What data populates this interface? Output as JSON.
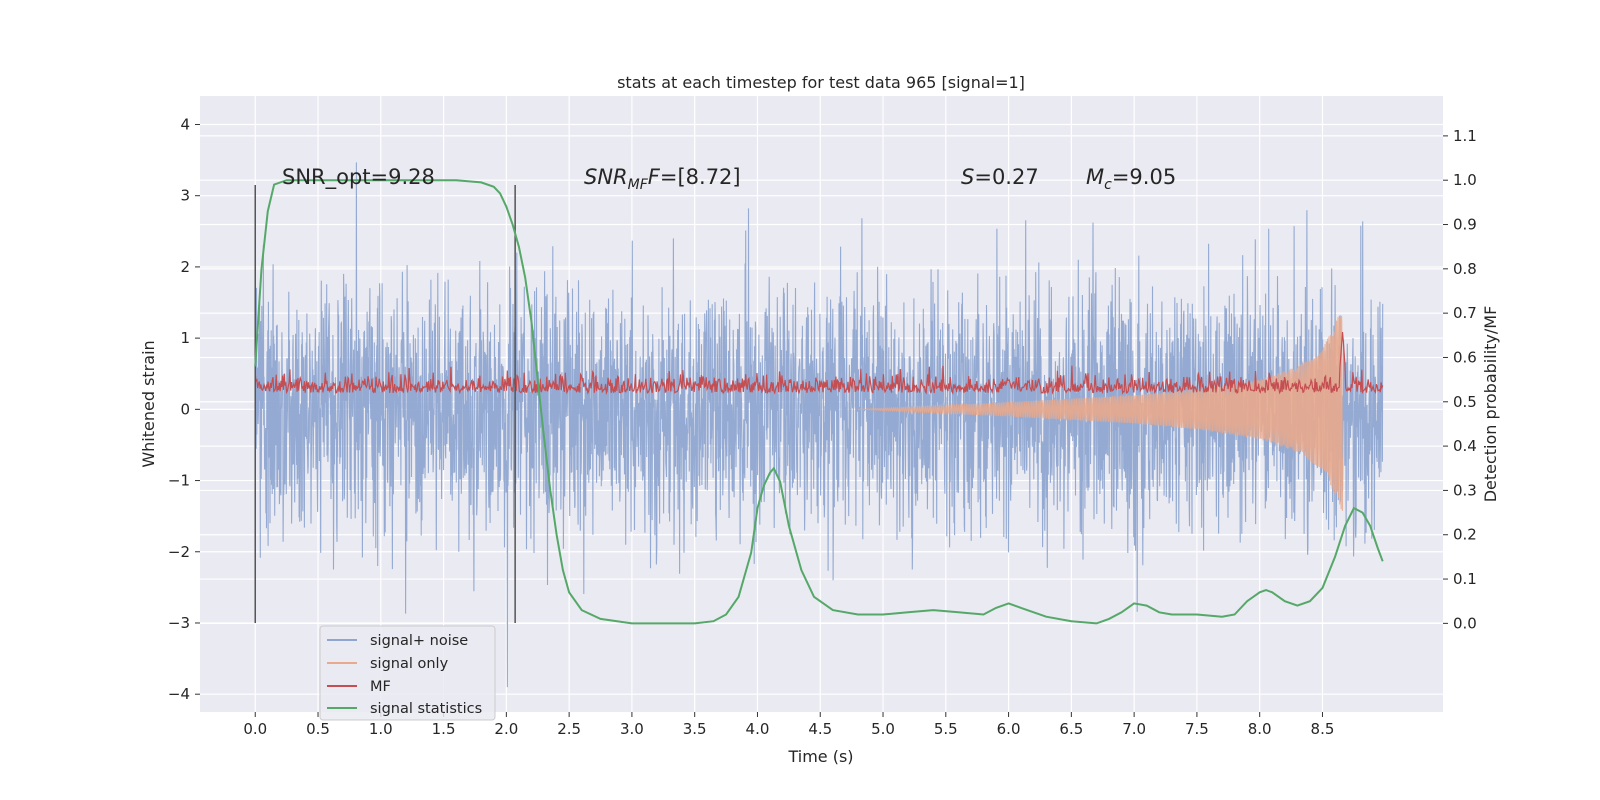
{
  "chart_data": {
    "type": "line",
    "title": "stats at each timestep for test data 965 [signal=1]",
    "xlabel": "Time (s)",
    "ylabel": "Whitened strain",
    "ylabel_right": "Detection probability/MF",
    "xlim": [
      -0.44,
      9.46
    ],
    "ylim": [
      -4.25,
      4.4
    ],
    "ylim_right": [
      -0.2,
      1.19
    ],
    "xticks": [
      0.0,
      0.5,
      1.0,
      1.5,
      2.0,
      2.5,
      3.0,
      3.5,
      4.0,
      4.5,
      5.0,
      5.5,
      6.0,
      6.5,
      7.0,
      7.5,
      8.0,
      8.5
    ],
    "xtick_labels": [
      "0.0",
      "0.5",
      "1.0",
      "1.5",
      "2.0",
      "2.5",
      "3.0",
      "3.5",
      "4.0",
      "4.5",
      "5.0",
      "5.5",
      "6.0",
      "6.5",
      "7.0",
      "7.5",
      "8.0",
      "8.5"
    ],
    "yticks": [
      4,
      3,
      2,
      1,
      0,
      -1,
      -2,
      -3,
      -4
    ],
    "ytick_labels": [
      "4",
      "3",
      "2",
      "1",
      "0",
      "−1",
      "−2",
      "−3",
      "−4"
    ],
    "yticks_right": [
      1.1,
      1.0,
      0.9,
      0.8,
      0.7,
      0.6,
      0.5,
      0.4,
      0.3,
      0.2,
      0.1,
      0.0
    ],
    "ytick_labels_right": [
      "1.1",
      "1.0",
      "0.9",
      "0.8",
      "0.7",
      "0.6",
      "0.5",
      "0.4",
      "0.3",
      "0.2",
      "0.1",
      "0.0"
    ],
    "signal_window": [
      0.0,
      2.07
    ],
    "signal_window_yrange": [
      -3.0,
      3.15
    ],
    "series": [
      {
        "name": "signal+ noise",
        "color": "#8fa6d0",
        "axis": "left",
        "t_range": [
          0.0,
          8.98
        ],
        "noise_std": 0.95,
        "note": "dense whitened noise trace"
      },
      {
        "name": "signal only",
        "color": "#e8a98c",
        "axis": "left",
        "t_range": [
          4.8,
          8.66
        ],
        "amplitude_envelope": {
          "t": [
            4.8,
            6.0,
            7.0,
            7.5,
            8.0,
            8.3,
            8.5,
            8.6,
            8.66
          ],
          "a": [
            0.0,
            0.1,
            0.2,
            0.28,
            0.42,
            0.6,
            0.85,
            1.2,
            1.45
          ]
        }
      },
      {
        "name": "MF",
        "color": "#c44e52",
        "axis": "right",
        "baseline": 0.52,
        "spike": {
          "t": 8.66,
          "value": 0.66
        }
      },
      {
        "name": "signal statistics",
        "color": "#55a868",
        "axis": "right",
        "t": [
          0.0,
          0.05,
          0.1,
          0.15,
          0.25,
          0.4,
          0.8,
          1.2,
          1.6,
          1.8,
          1.9,
          1.95,
          2.0,
          2.05,
          2.1,
          2.15,
          2.2,
          2.25,
          2.3,
          2.35,
          2.4,
          2.45,
          2.5,
          2.6,
          2.75,
          3.0,
          3.3,
          3.5,
          3.65,
          3.75,
          3.85,
          3.95,
          4.0,
          4.05,
          4.1,
          4.13,
          4.18,
          4.25,
          4.35,
          4.45,
          4.6,
          4.8,
          5.0,
          5.2,
          5.4,
          5.6,
          5.8,
          5.9,
          6.0,
          6.1,
          6.3,
          6.5,
          6.7,
          6.8,
          6.9,
          7.0,
          7.1,
          7.2,
          7.3,
          7.5,
          7.7,
          7.8,
          7.9,
          8.0,
          8.05,
          8.1,
          8.2,
          8.3,
          8.4,
          8.5,
          8.6,
          8.68,
          8.75,
          8.82,
          8.88,
          8.94,
          8.98
        ],
        "y": [
          0.58,
          0.8,
          0.93,
          0.99,
          1.0,
          1.0,
          1.0,
          1.0,
          1.0,
          0.995,
          0.985,
          0.97,
          0.94,
          0.9,
          0.85,
          0.78,
          0.68,
          0.55,
          0.42,
          0.3,
          0.2,
          0.12,
          0.07,
          0.03,
          0.01,
          0.0,
          0.0,
          0.0,
          0.005,
          0.02,
          0.06,
          0.16,
          0.26,
          0.31,
          0.34,
          0.35,
          0.32,
          0.22,
          0.12,
          0.06,
          0.03,
          0.02,
          0.02,
          0.025,
          0.03,
          0.025,
          0.02,
          0.035,
          0.045,
          0.035,
          0.015,
          0.005,
          0.0,
          0.01,
          0.025,
          0.045,
          0.04,
          0.025,
          0.02,
          0.02,
          0.015,
          0.02,
          0.05,
          0.07,
          0.075,
          0.07,
          0.05,
          0.04,
          0.05,
          0.08,
          0.15,
          0.22,
          0.26,
          0.25,
          0.22,
          0.17,
          0.14
        ]
      }
    ],
    "annotations": {
      "snr_opt": "SNR_opt=9.28",
      "snr_mf_prefix": "SNR",
      "snr_mf_sub": "MF",
      "snr_mf_value": "=[8.72]",
      "s_symbol": "S",
      "s_value": "=0.27",
      "mc_symbol": "M",
      "mc_sub": "c",
      "mc_value": "=9.05"
    },
    "legend": {
      "location": "lower-left",
      "entries": [
        "signal+ noise",
        "signal only",
        "MF",
        "signal statistics"
      ]
    }
  }
}
